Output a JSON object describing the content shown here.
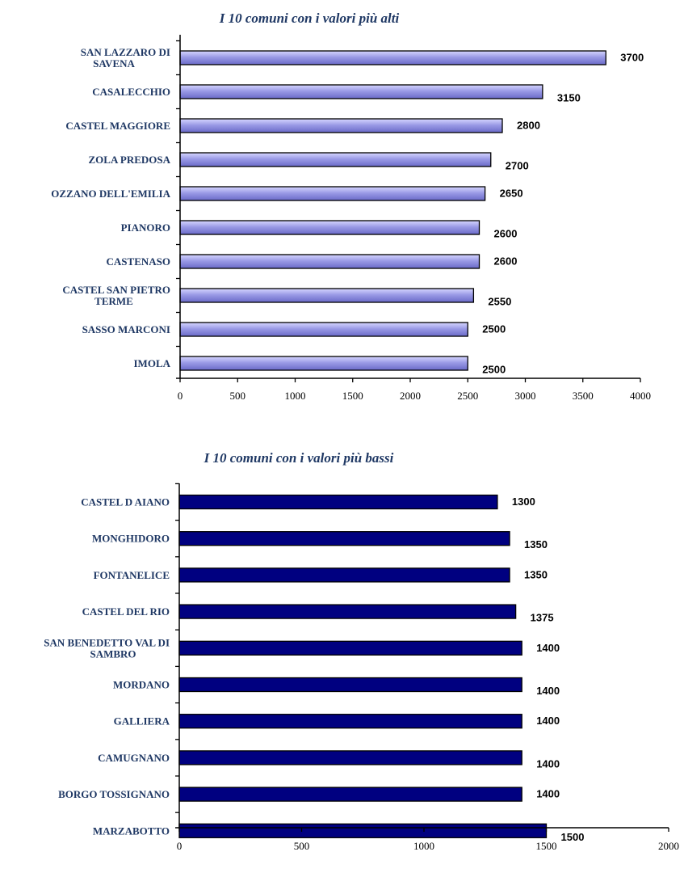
{
  "chart_data": [
    {
      "type": "bar",
      "orientation": "horizontal",
      "title": "I 10 comuni con i valori più alti",
      "categories": [
        [
          "SAN LAZZARO DI",
          "SAVENA"
        ],
        [
          "CASALECCHIO"
        ],
        [
          "CASTEL MAGGIORE"
        ],
        [
          "ZOLA PREDOSA"
        ],
        [
          "OZZANO DELL'EMILIA"
        ],
        [
          "PIANORO"
        ],
        [
          "CASTENASO"
        ],
        [
          "CASTEL SAN PIETRO",
          "TERME"
        ],
        [
          "SASSO MARCONI"
        ],
        [
          "IMOLA"
        ]
      ],
      "values": [
        3700,
        3150,
        2800,
        2700,
        2650,
        2600,
        2600,
        2550,
        2500,
        2500
      ],
      "value_labels": [
        "3700",
        "3150",
        "2800",
        "2700",
        "2650",
        "2600",
        "2600",
        "2550",
        "2500",
        "2500"
      ],
      "xlim": [
        0,
        4000
      ],
      "xticks": [
        0,
        500,
        1000,
        1500,
        2000,
        2500,
        3000,
        3500,
        4000
      ],
      "xtick_labels": [
        "0",
        "500",
        "1000",
        "1500",
        "2000",
        "2500",
        "3000",
        "3500",
        "4000"
      ],
      "grid": false,
      "bar_color": "#9b9be6",
      "bar_color_top": "#d6d6ff",
      "bar_color_bottom": "#6a6ac8"
    },
    {
      "type": "bar",
      "orientation": "horizontal",
      "title": "I 10 comuni con i valori più bassi",
      "categories": [
        [
          "CASTEL D AIANO"
        ],
        [
          "MONGHIDORO"
        ],
        [
          "FONTANELICE"
        ],
        [
          "CASTEL DEL RIO"
        ],
        [
          "SAN BENEDETTO VAL DI",
          "SAMBRO"
        ],
        [
          "MORDANO"
        ],
        [
          "GALLIERA"
        ],
        [
          "CAMUGNANO"
        ],
        [
          "BORGO TOSSIGNANO"
        ],
        [
          "MARZABOTTO"
        ]
      ],
      "values": [
        1300,
        1350,
        1350,
        1375,
        1400,
        1400,
        1400,
        1400,
        1400,
        1500
      ],
      "value_labels": [
        "1300",
        "1350",
        "1350",
        "1375",
        "1400",
        "1400",
        "1400",
        "1400",
        "1400",
        "1500"
      ],
      "xlim": [
        0,
        2000
      ],
      "xticks": [
        0,
        500,
        1000,
        1500,
        2000
      ],
      "xtick_labels": [
        "0",
        "500",
        "1000",
        "1500",
        "2000"
      ],
      "grid": false,
      "bar_color": "#000080"
    }
  ]
}
